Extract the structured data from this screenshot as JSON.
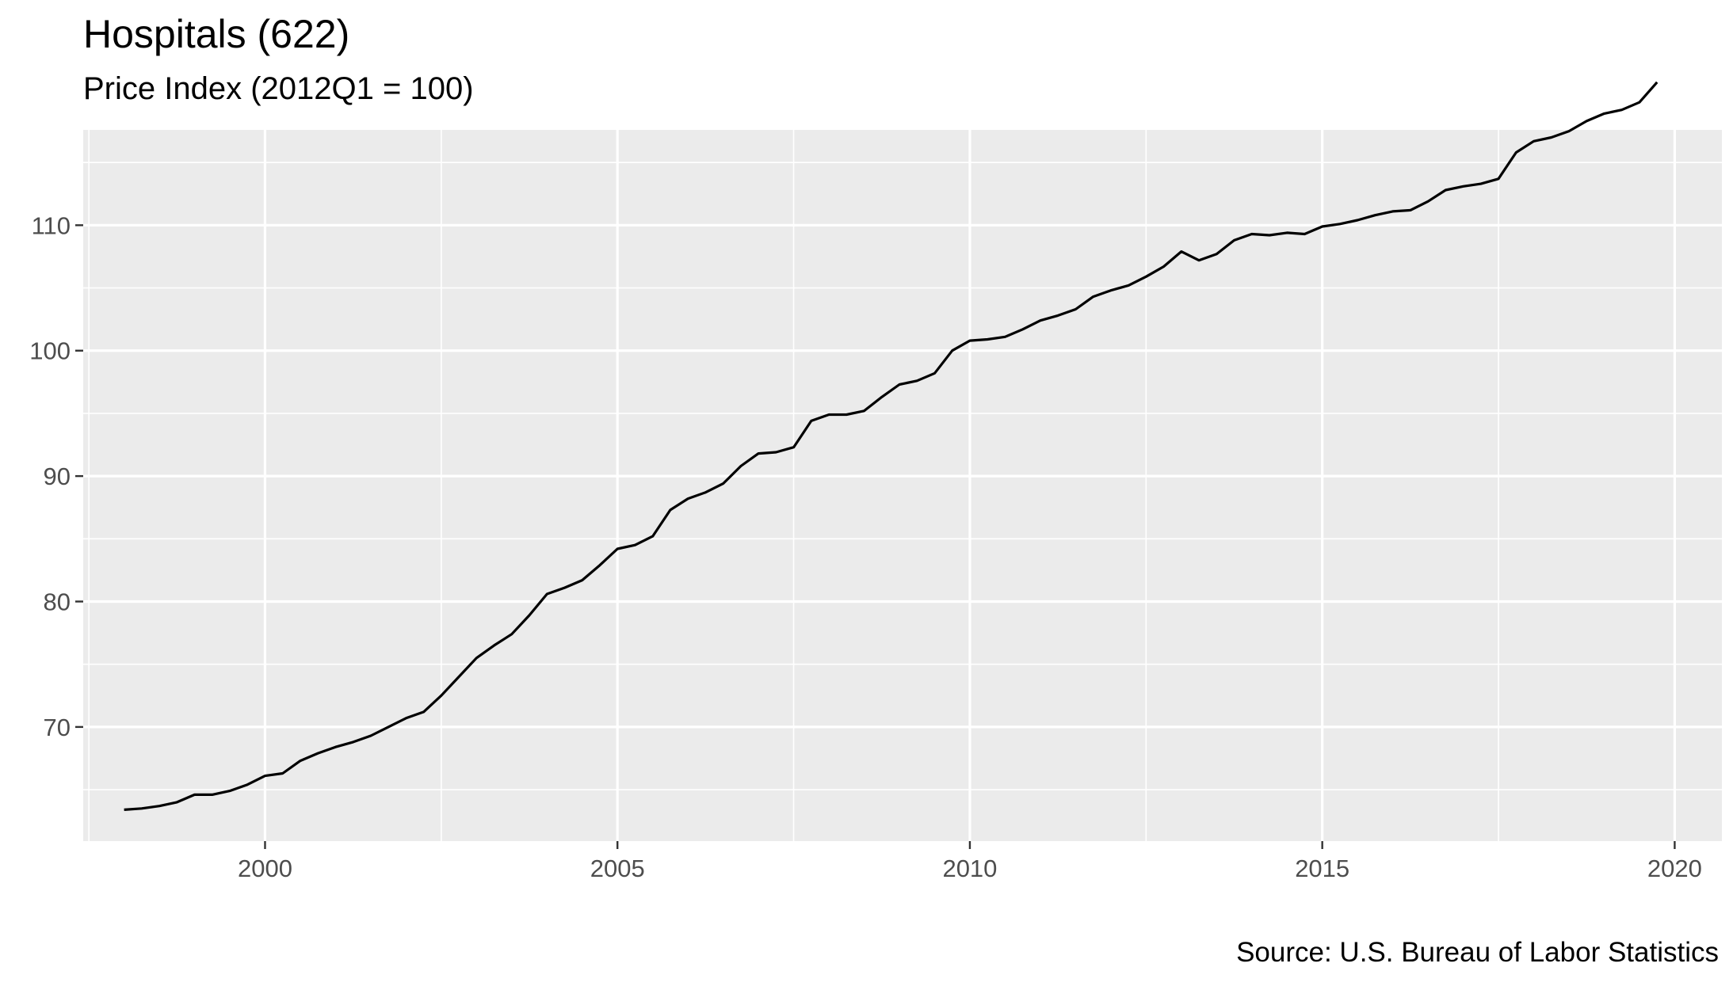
{
  "chart_data": {
    "type": "line",
    "title": "Hospitals (622)",
    "subtitle": "Price Index (2012Q1 = 100)",
    "caption": "Source: U.S. Bureau of Labor Statistics",
    "xlabel": "",
    "ylabel": "",
    "xlim": [
      1997.42,
      2020.67
    ],
    "ylim": [
      60.9,
      117.6
    ],
    "x_ticks": [
      2000,
      2005,
      2010,
      2015,
      2020
    ],
    "y_ticks": [
      70,
      80,
      90,
      100,
      110
    ],
    "grid": true,
    "line_color": "#000000",
    "panel_background": "#ebebeb",
    "grid_color": "#ffffff",
    "series": [
      {
        "x": [
          1998.0,
          1998.25,
          1998.5,
          1998.75,
          1999.0,
          1999.25,
          1999.5,
          1999.75,
          2000.0,
          2000.25,
          2000.5,
          2000.75,
          2001.0,
          2001.25,
          2001.5,
          2001.75,
          2002.0,
          2002.25,
          2002.5,
          2002.75,
          2003.0,
          2003.25,
          2003.5,
          2003.75,
          2004.0,
          2004.25,
          2004.5,
          2004.75,
          2005.0,
          2005.25,
          2005.5,
          2005.75,
          2006.0,
          2006.25,
          2006.5,
          2006.75,
          2007.0,
          2007.25,
          2007.5,
          2007.75,
          2008.0,
          2008.25,
          2008.5,
          2008.75,
          2009.0,
          2009.25,
          2009.5,
          2009.75,
          2010.0,
          2010.25,
          2010.5,
          2010.75,
          2011.0,
          2011.25,
          2011.5,
          2011.75,
          2012.0,
          2012.25,
          2012.5,
          2012.75,
          2013.0,
          2013.25,
          2013.5,
          2013.75,
          2014.0,
          2014.25,
          2014.5,
          2014.75,
          2015.0,
          2015.25,
          2015.5,
          2015.75,
          2016.0,
          2016.25,
          2016.5,
          2016.75,
          2017.0,
          2017.25,
          2017.5,
          2017.75,
          2018.0,
          2018.25,
          2018.5,
          2018.75,
          2019.0,
          2019.25,
          2019.5,
          2019.75
        ],
        "values": [
          63.4,
          63.5,
          63.7,
          64.0,
          64.6,
          64.6,
          64.9,
          65.4,
          66.1,
          66.3,
          67.3,
          67.9,
          68.4,
          68.8,
          69.3,
          70.0,
          70.7,
          71.2,
          72.5,
          74.0,
          75.5,
          76.5,
          77.4,
          78.9,
          80.6,
          81.1,
          81.7,
          82.9,
          84.2,
          84.5,
          85.2,
          87.3,
          88.2,
          88.7,
          89.4,
          90.8,
          91.8,
          91.9,
          92.3,
          94.4,
          94.9,
          94.9,
          95.2,
          96.3,
          97.3,
          97.6,
          98.2,
          100.0,
          100.8,
          100.9,
          101.1,
          101.7,
          102.4,
          102.8,
          103.3,
          104.3,
          104.8,
          105.2,
          105.9,
          106.7,
          107.9,
          107.2,
          107.7,
          108.8,
          109.3,
          109.2,
          109.4,
          109.3,
          109.9,
          110.1,
          110.4,
          110.8,
          111.1,
          111.2,
          111.9,
          112.8,
          113.1,
          113.3,
          113.7,
          115.8,
          116.7,
          117.0,
          117.5,
          118.3,
          118.9,
          119.2,
          119.8,
          121.4
        ]
      }
    ]
  }
}
